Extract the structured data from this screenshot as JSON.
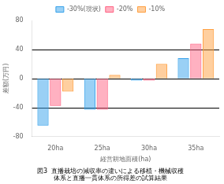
{
  "chart_data": {
    "type": "bar",
    "categories": [
      "20ha",
      "25ha",
      "30ha",
      "35ha"
    ],
    "series": [
      {
        "name": "-30%(現状)",
        "values": [
          -65,
          -43,
          -3,
          28
        ]
      },
      {
        "name": "-20%",
        "values": [
          -38,
          -43,
          -3,
          48
        ]
      },
      {
        "name": "-10%",
        "values": [
          -18,
          5,
          20,
          68
        ]
      }
    ],
    "xlabel": "経営耕地面積(ha)",
    "ylabel": "差額(万円)",
    "ylim": [
      -80,
      80
    ],
    "yticks": [
      -80,
      -40,
      0,
      40,
      80
    ],
    "hlines": [
      40,
      -40,
      0
    ],
    "annotations": [
      "図3  直播栽培の減収率の違いによる移植・機械収穫",
      "体系と直播一貫体系の所得差の試算結果"
    ],
    "legend": "top",
    "grid": false
  }
}
